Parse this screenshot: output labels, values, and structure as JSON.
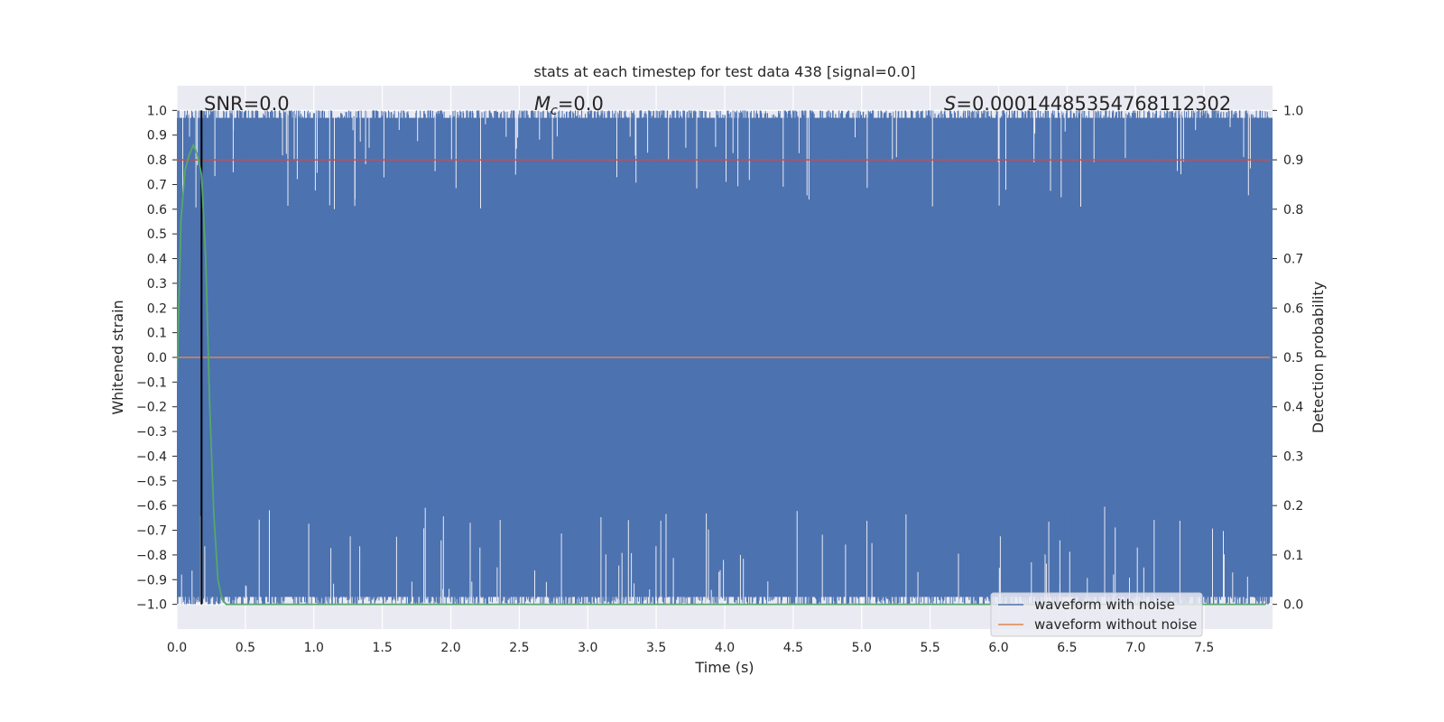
{
  "chart_data": {
    "type": "line",
    "title": "stats at each timestep for test data 438 [signal=0.0]",
    "xlabel": "Time (s)",
    "ylabel_left": "Whitened strain",
    "ylabel_right": "Detection probability",
    "xlim": [
      0.0,
      8.0
    ],
    "ylim_left": [
      -1.1,
      1.1
    ],
    "ylim_right": [
      -0.05,
      1.05
    ],
    "xticks": [
      "0.0",
      "0.5",
      "1.0",
      "1.5",
      "2.0",
      "2.5",
      "3.0",
      "3.5",
      "4.0",
      "4.5",
      "5.0",
      "5.5",
      "6.0",
      "6.5",
      "7.0",
      "7.5"
    ],
    "yticks_left": [
      "1.0",
      "0.9",
      "0.8",
      "0.7",
      "0.6",
      "0.5",
      "0.4",
      "0.3",
      "0.2",
      "0.1",
      "0.0",
      "−0.1",
      "−0.2",
      "−0.3",
      "−0.4",
      "−0.5",
      "−0.6",
      "−0.7",
      "−0.8",
      "−0.9",
      "−1.0"
    ],
    "yticks_right": [
      "1.0",
      "0.9",
      "0.8",
      "0.7",
      "0.6",
      "0.5",
      "0.4",
      "0.3",
      "0.2",
      "0.1",
      "0.0"
    ],
    "grid": true,
    "annotations": {
      "snr": "SNR=0.0",
      "mc_symbol": "M",
      "mc_sub": "c",
      "mc_value": "=0.0",
      "s_symbol": "S",
      "s_value": "=0.00014485354768112302"
    },
    "marker_time": 0.18,
    "threshold_probability": 0.9,
    "noise_series": {
      "name": "waveform with noise",
      "color": "#4c72b0",
      "description_level": "fills approximately the whole range between -1.0 and 1.0",
      "sample_count": 2200,
      "seed": 438
    },
    "clean_series": {
      "name": "waveform without noise",
      "color": "#dd8452",
      "value": 0.0
    },
    "probability_series": {
      "color": "#55a868",
      "x": [
        0.0,
        0.03,
        0.06,
        0.09,
        0.12,
        0.15,
        0.18,
        0.21,
        0.24,
        0.27,
        0.3,
        0.33,
        0.36,
        0.4,
        7.95
      ],
      "y": [
        0.45,
        0.78,
        0.88,
        0.91,
        0.93,
        0.91,
        0.87,
        0.7,
        0.4,
        0.18,
        0.05,
        0.01,
        0.0,
        0.0,
        0.0
      ]
    },
    "threshold_color": "#c44e52",
    "marker_color": "#000000",
    "legend": {
      "placement": "bottom-right",
      "entries": [
        "waveform with noise",
        "waveform without noise"
      ]
    }
  }
}
